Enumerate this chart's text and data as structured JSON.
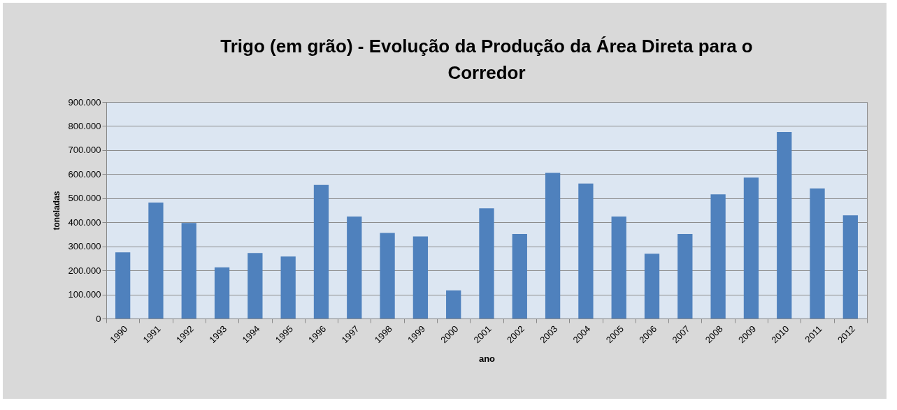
{
  "chart_data": {
    "type": "bar",
    "title": "Trigo (em grão) - Evolução da Produção da Área Direta para o Corredor",
    "xlabel": "ano",
    "ylabel": "toneladas",
    "categories": [
      "1990",
      "1991",
      "1992",
      "1993",
      "1994",
      "1995",
      "1996",
      "1997",
      "1998",
      "1999",
      "2000",
      "2001",
      "2002",
      "2003",
      "2004",
      "2005",
      "2006",
      "2007",
      "2008",
      "2009",
      "2010",
      "2011",
      "2012"
    ],
    "values": [
      275000,
      482000,
      397000,
      213000,
      272000,
      258000,
      555000,
      424000,
      356000,
      341000,
      117000,
      458000,
      351000,
      605000,
      561000,
      424000,
      269000,
      351000,
      516000,
      586000,
      775000,
      541000,
      429000
    ],
    "color": "#4f81bd",
    "ylim": [
      0,
      900000
    ],
    "yticks": [
      0,
      {
        "value": 100000,
        "label": "100.000"
      },
      {
        "value": 200000,
        "label": "200.000"
      },
      {
        "value": 300000,
        "label": "300.000"
      },
      {
        "value": 400000,
        "label": "400.000"
      },
      {
        "value": 500000,
        "label": "500.000"
      },
      {
        "value": 600000,
        "label": "600.000"
      },
      {
        "value": 700000,
        "label": "700.000"
      },
      {
        "value": 800000,
        "label": "800.000"
      },
      {
        "value": 900000,
        "label": "900.000"
      }
    ],
    "grid": "y"
  }
}
